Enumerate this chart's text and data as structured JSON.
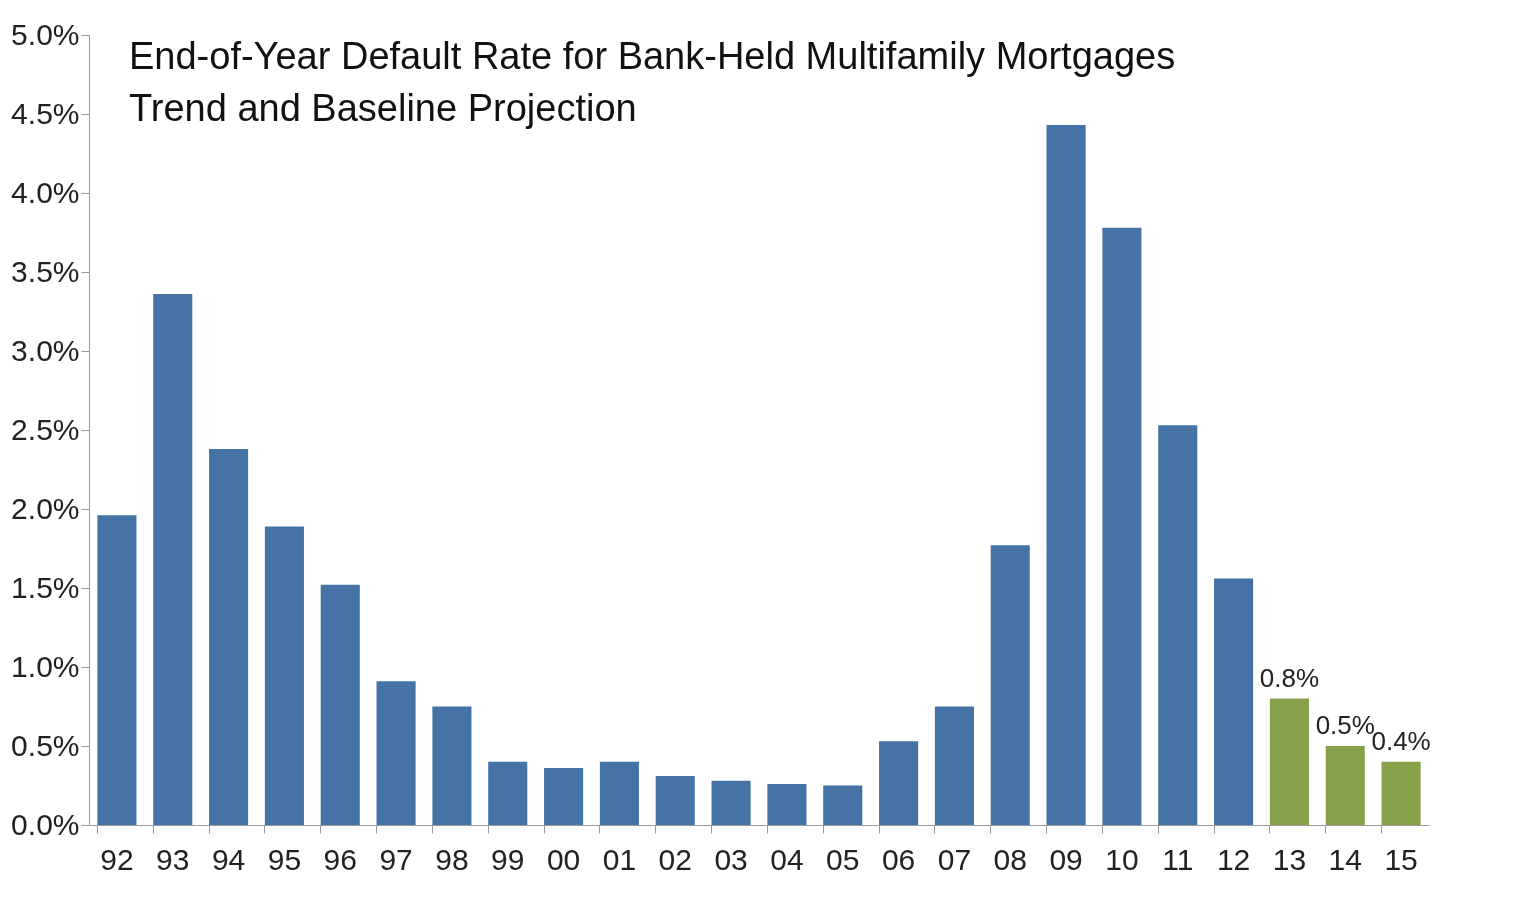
{
  "chart_data": {
    "type": "bar",
    "title": "End-of-Year Default Rate for Bank-Held Multifamily Mortgages",
    "subtitle": "Trend and Baseline Projection",
    "categories": [
      "92",
      "93",
      "94",
      "95",
      "96",
      "97",
      "98",
      "99",
      "00",
      "01",
      "02",
      "03",
      "04",
      "05",
      "06",
      "07",
      "08",
      "09",
      "10",
      "11",
      "12",
      "13",
      "14",
      "15"
    ],
    "values": [
      1.96,
      3.36,
      2.38,
      1.89,
      1.52,
      0.91,
      0.75,
      0.4,
      0.36,
      0.4,
      0.31,
      0.28,
      0.26,
      0.25,
      0.53,
      0.75,
      1.77,
      4.43,
      3.78,
      2.53,
      1.56,
      0.8,
      0.5,
      0.4
    ],
    "colors": [
      "#4573a5",
      "#4573a5",
      "#4573a5",
      "#4573a5",
      "#4573a5",
      "#4573a5",
      "#4573a5",
      "#4573a5",
      "#4573a5",
      "#4573a5",
      "#4573a5",
      "#4573a5",
      "#4573a5",
      "#4573a5",
      "#4573a5",
      "#4573a5",
      "#4573a5",
      "#4573a5",
      "#4573a5",
      "#4573a5",
      "#4573a5",
      "#87a04a",
      "#87a04a",
      "#87a04a"
    ],
    "value_labels": [
      null,
      null,
      null,
      null,
      null,
      null,
      null,
      null,
      null,
      null,
      null,
      null,
      null,
      null,
      null,
      null,
      null,
      null,
      null,
      null,
      null,
      "0.8%",
      "0.5%",
      "0.4%"
    ],
    "ylim": [
      0,
      5
    ],
    "yticks": [
      {
        "value": 0,
        "label": "0.0%"
      },
      {
        "value": 0.5,
        "label": "0.5%"
      },
      {
        "value": 1,
        "label": "1.0%"
      },
      {
        "value": 1.5,
        "label": "1.5%"
      },
      {
        "value": 2,
        "label": "2.0%"
      },
      {
        "value": 2.5,
        "label": "2.5%"
      },
      {
        "value": 3,
        "label": "3.0%"
      },
      {
        "value": 3.5,
        "label": "3.5%"
      },
      {
        "value": 4,
        "label": "4.0%"
      },
      {
        "value": 4.5,
        "label": "4.5%"
      },
      {
        "value": 5,
        "label": "5.0%"
      }
    ],
    "grid": false
  }
}
